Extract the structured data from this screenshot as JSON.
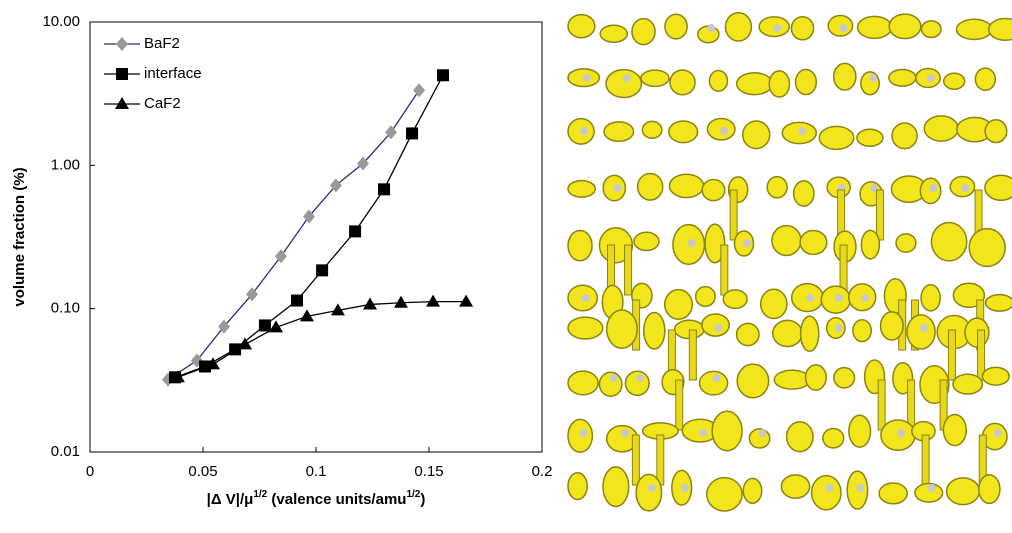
{
  "chart_data": {
    "type": "line",
    "ylabel": "volume fraction (%)",
    "xlabel": [
      "|Δ V|/μ",
      "1/2",
      " (valence units/amu",
      "1/2",
      ")"
    ],
    "log_y": true,
    "xlim": [
      0,
      0.2
    ],
    "xticks": [
      0,
      0.05,
      0.1,
      0.15,
      0.2
    ],
    "ylim": [
      0.01,
      10
    ],
    "yticks": [
      {
        "value": 10,
        "label": "10.00"
      },
      {
        "value": 1,
        "label": "1.00"
      },
      {
        "value": 0.1,
        "label": "0.10"
      },
      {
        "value": 0.01,
        "label": "0.01"
      }
    ],
    "legend": "upper left",
    "series": [
      {
        "name": "BaF2",
        "color": "#2b2b8c",
        "marker": "diamond",
        "marker_color": "#999999",
        "x": [
          0.0345,
          0.0473,
          0.0593,
          0.0717,
          0.0845,
          0.0969,
          0.1088,
          0.1208,
          0.1332,
          0.1456
        ],
        "values": [
          0.032,
          0.0435,
          0.075,
          0.126,
          0.232,
          0.44,
          0.725,
          1.03,
          1.7,
          3.34
        ]
      },
      {
        "name": "interface",
        "color": "#000000",
        "marker": "square",
        "marker_color": "#000000",
        "x": [
          0.0376,
          0.0509,
          0.0642,
          0.0774,
          0.0916,
          0.1027,
          0.1173,
          0.1301,
          0.1425,
          0.1562
        ],
        "values": [
          0.0332,
          0.0395,
          0.052,
          0.0764,
          0.114,
          0.185,
          0.346,
          0.68,
          1.67,
          4.25
        ]
      },
      {
        "name": "CaF2",
        "color": "#000000",
        "marker": "triangle",
        "marker_color": "#000000",
        "x": [
          0.0389,
          0.0544,
          0.0686,
          0.0823,
          0.096,
          0.1097,
          0.1239,
          0.1376,
          0.1518,
          0.1664
        ],
        "values": [
          0.0332,
          0.0409,
          0.0563,
          0.074,
          0.0883,
          0.0973,
          0.107,
          0.11,
          0.112,
          0.112
        ]
      }
    ]
  }
}
